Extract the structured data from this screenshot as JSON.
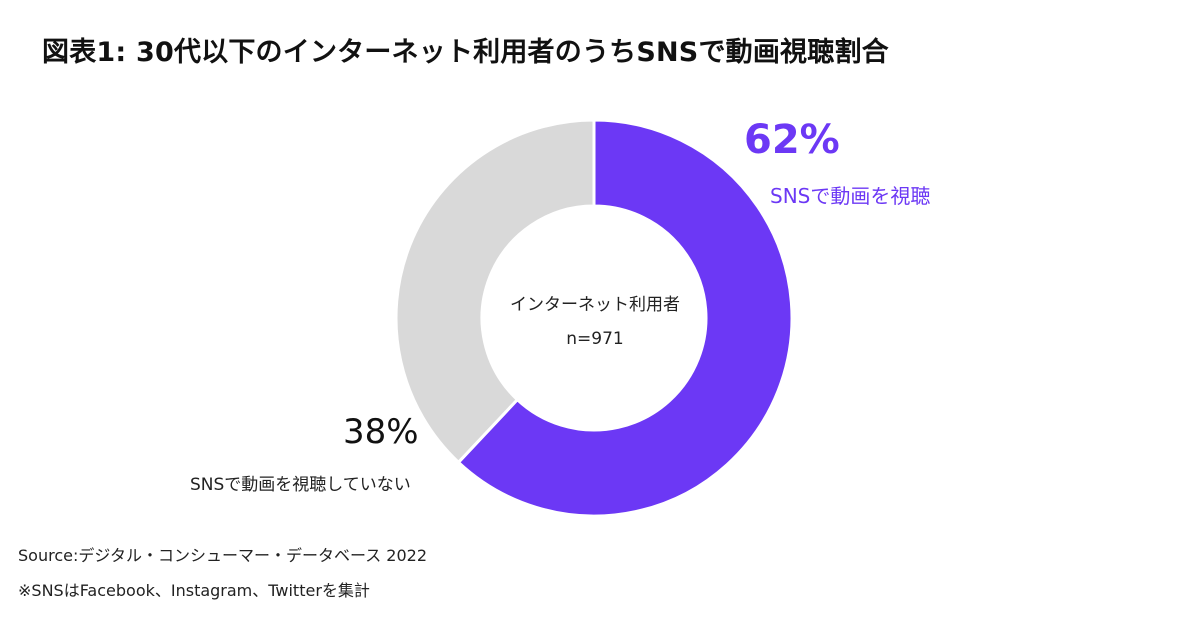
{
  "colors": {
    "primary": "#6c38f5",
    "secondary": "#d9d9d9"
  },
  "chart_data": {
    "type": "pie",
    "title": "図表1: 30代以下のインターネット利用者のうちSNSで動画視聴割合",
    "center_label": "インターネット利用者",
    "center_sublabel": "n=971",
    "slices": [
      {
        "name": "SNSで動画を視聴",
        "value": 62,
        "display": "62%",
        "color": "#6c38f5"
      },
      {
        "name": "SNSで動画を視聴していない",
        "value": 38,
        "display": "38%",
        "color": "#d9d9d9"
      }
    ]
  },
  "notes": {
    "source": "Source:デジタル・コンシューマー・データベース 2022",
    "footnote": "※SNSはFacebook、Instagram、Twitterを集計"
  }
}
